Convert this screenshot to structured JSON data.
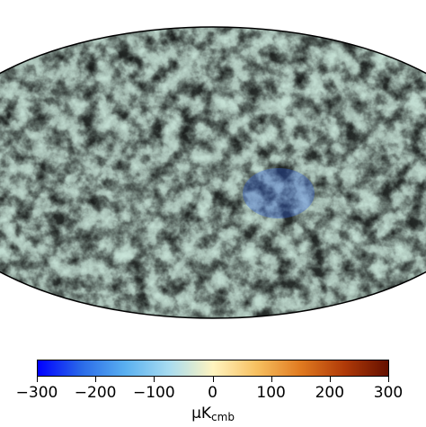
{
  "map": {
    "projection": "mollweide",
    "colormap": [
      "#0000ff",
      "#2a6ae8",
      "#5ab0f0",
      "#a8dcf0",
      "#fff4c0",
      "#f7c060",
      "#e07a20",
      "#b03a08",
      "#641000"
    ]
  },
  "colorbar": {
    "min": -300,
    "max": 300,
    "ticks": [
      {
        "value": -300,
        "label": "−300"
      },
      {
        "value": -200,
        "label": "−200"
      },
      {
        "value": -100,
        "label": "−100"
      },
      {
        "value": 0,
        "label": "0"
      },
      {
        "value": 100,
        "label": "100"
      },
      {
        "value": 200,
        "label": "200"
      },
      {
        "value": 300,
        "label": "300"
      }
    ],
    "unit_main": "μK",
    "unit_sub": "cmb"
  }
}
